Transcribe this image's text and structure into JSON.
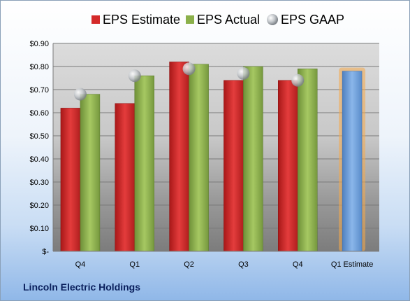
{
  "chart_data": {
    "type": "bar",
    "categories": [
      "Q4",
      "Q1",
      "Q2",
      "Q3",
      "Q4",
      "Q1 Estimate"
    ],
    "series": [
      {
        "name": "EPS Estimate",
        "values": [
          0.62,
          0.64,
          0.82,
          0.74,
          0.74,
          null
        ],
        "color": "#d42a2a"
      },
      {
        "name": "EPS Actual",
        "values": [
          0.68,
          0.76,
          0.81,
          0.8,
          0.79,
          null
        ],
        "color": "#8bb04a"
      },
      {
        "name": "EPS GAAP",
        "values": [
          0.68,
          0.76,
          0.79,
          0.77,
          0.74,
          null
        ],
        "color": "#b8bcc2"
      }
    ],
    "estimate": {
      "category": "Q1 Estimate",
      "value": 0.78,
      "color": "#6e9fd8",
      "glow": "#f5a94a"
    },
    "y_ticks": [
      "$-",
      "$0.10",
      "$0.20",
      "$0.30",
      "$0.40",
      "$0.50",
      "$0.60",
      "$0.70",
      "$0.80",
      "$0.90"
    ],
    "ylim": [
      0,
      0.9
    ],
    "grid": true,
    "legend_position": "top"
  },
  "footer": {
    "company": "Lincoln Electric Holdings"
  }
}
